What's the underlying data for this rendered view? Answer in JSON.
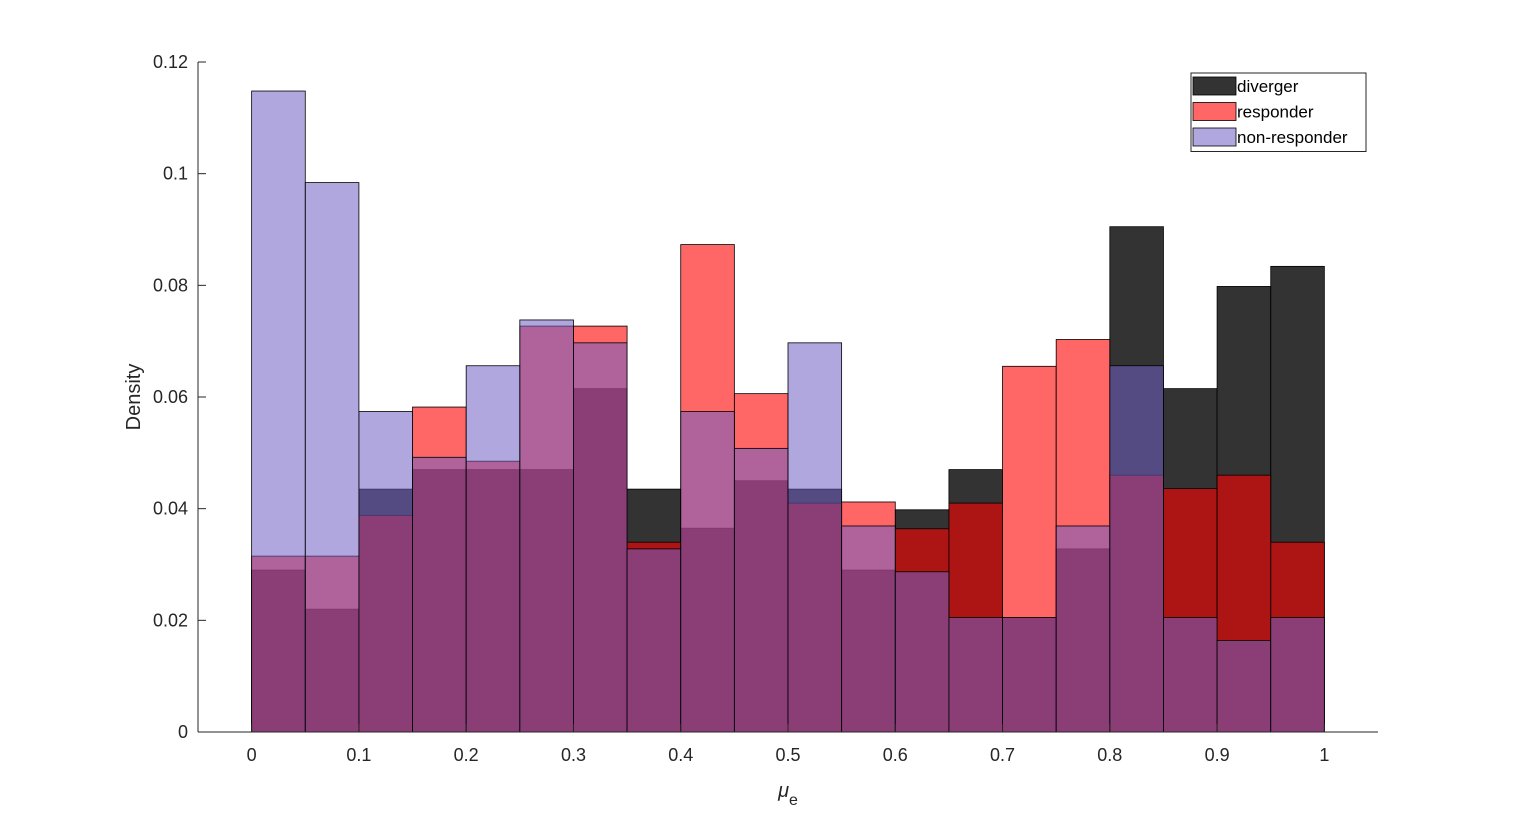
{
  "chart_data": {
    "type": "bar",
    "subtype": "overlapping-histogram",
    "title": "",
    "xlabel": "μ",
    "xlabel_subscript": "e",
    "ylabel": "Density",
    "xlim": [
      -0.05,
      1.05
    ],
    "ylim": [
      0,
      0.12
    ],
    "xticks": [
      0,
      0.1,
      0.2,
      0.3,
      0.4,
      0.5,
      0.6,
      0.7,
      0.8,
      0.9,
      1
    ],
    "xtick_labels": [
      "0",
      "0.1",
      "0.2",
      "0.3",
      "0.4",
      "0.5",
      "0.6",
      "0.7",
      "0.8",
      "0.9",
      "1"
    ],
    "yticks": [
      0,
      0.02,
      0.04,
      0.06,
      0.08,
      0.1,
      0.12
    ],
    "ytick_labels": [
      "0",
      "0.02",
      "0.04",
      "0.06",
      "0.08",
      "0.1",
      "0.12"
    ],
    "grid": false,
    "legend_position": "top-right",
    "bin_edges": [
      0,
      0.05,
      0.1,
      0.15,
      0.2,
      0.25,
      0.3,
      0.35,
      0.4,
      0.45,
      0.5,
      0.55,
      0.6,
      0.65,
      0.7,
      0.75,
      0.8,
      0.85,
      0.9,
      0.95,
      1.0
    ],
    "series": [
      {
        "name": "diverger",
        "color": "#000000",
        "alpha": 0.8,
        "values": [
          0.029,
          0.022,
          0.0435,
          0.047,
          0.047,
          0.047,
          0.0615,
          0.0435,
          0.0365,
          0.045,
          0.0435,
          0.029,
          0.0398,
          0.047,
          0.0205,
          0.0328,
          0.0905,
          0.0615,
          0.0798,
          0.0834
        ]
      },
      {
        "name": "responder",
        "color": "#ff0000",
        "alpha": 0.6,
        "values": [
          0.0315,
          0.0315,
          0.0388,
          0.0582,
          0.0485,
          0.0727,
          0.0727,
          0.034,
          0.0873,
          0.0606,
          0.041,
          0.0412,
          0.0364,
          0.041,
          0.0655,
          0.0703,
          0.046,
          0.0436,
          0.046,
          0.034
        ]
      },
      {
        "name": "non-responder",
        "color": "#6f5fc4",
        "alpha": 0.55,
        "values": [
          0.1148,
          0.0984,
          0.0574,
          0.0492,
          0.0656,
          0.0738,
          0.0697,
          0.0328,
          0.0574,
          0.0508,
          0.0697,
          0.0369,
          0.0287,
          0.0205,
          0.0205,
          0.0369,
          0.0656,
          0.0205,
          0.0164,
          0.0205
        ]
      }
    ]
  }
}
